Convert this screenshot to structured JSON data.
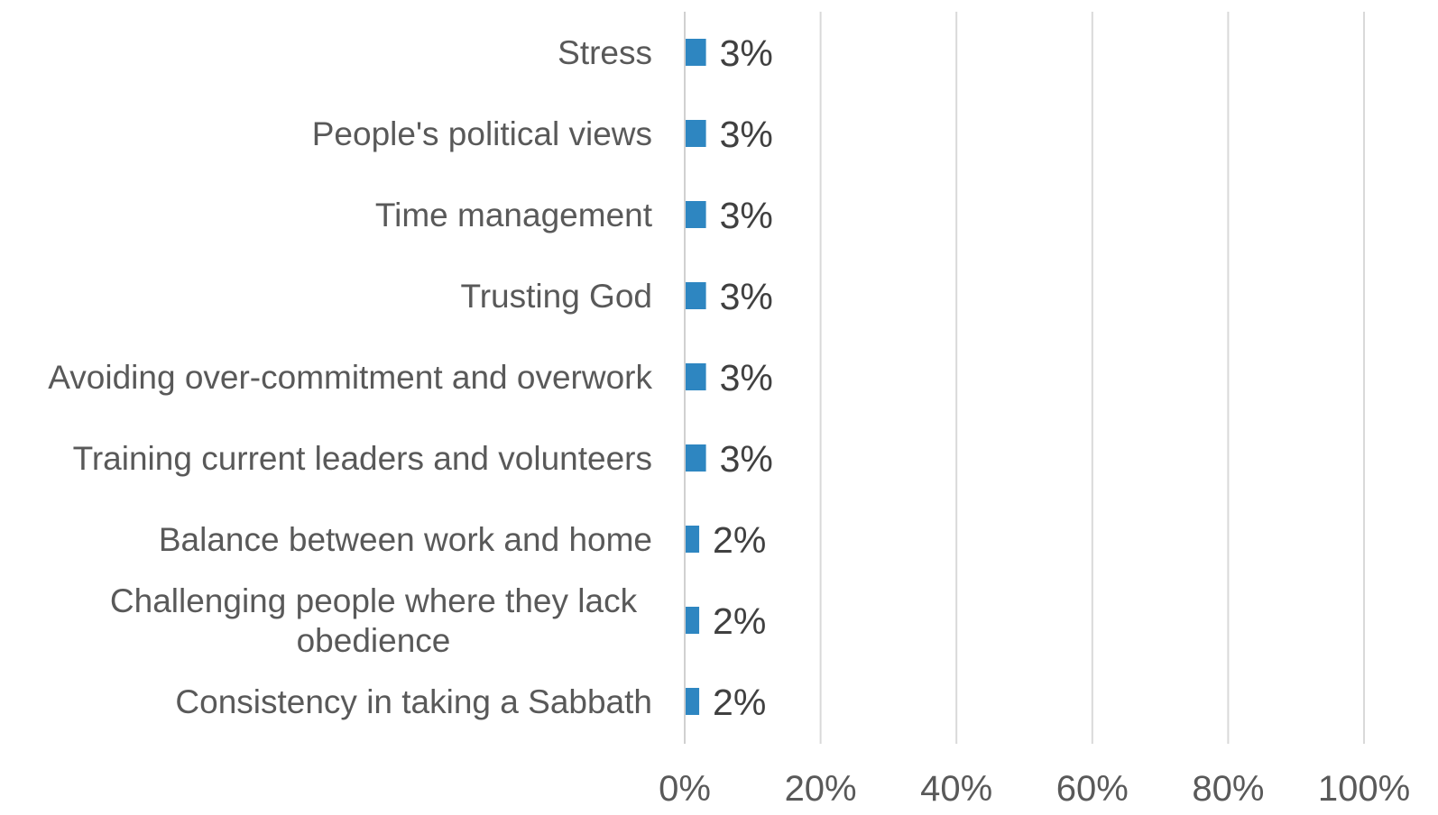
{
  "chart_data": {
    "type": "bar",
    "orientation": "horizontal",
    "categories": [
      "Stress",
      "People's political views",
      "Time management",
      "Trusting God",
      "Avoiding over-commitment and overwork",
      "Training current leaders and volunteers",
      "Balance between work and home",
      "Challenging people where they lack obedience",
      "Consistency in taking a Sabbath"
    ],
    "category_lines": [
      [
        "Stress"
      ],
      [
        "People's political views"
      ],
      [
        "Time management"
      ],
      [
        "Trusting God"
      ],
      [
        "Avoiding over-commitment and overwork"
      ],
      [
        "Training current leaders and volunteers"
      ],
      [
        "Balance between work and home"
      ],
      [
        "Challenging people where they lack",
        "obedience"
      ],
      [
        "Consistency in taking a Sabbath"
      ]
    ],
    "values": [
      3,
      3,
      3,
      3,
      3,
      3,
      2,
      2,
      2
    ],
    "data_labels": [
      "3%",
      "3%",
      "3%",
      "3%",
      "3%",
      "3%",
      "2%",
      "2%",
      "2%"
    ],
    "xlim": [
      0,
      100
    ],
    "xticks": [
      0,
      20,
      40,
      60,
      80,
      100
    ],
    "xtick_labels": [
      "0%",
      "20%",
      "40%",
      "60%",
      "80%",
      "100%"
    ],
    "grid": true,
    "bar_color": "#2E86C1",
    "title": "",
    "xlabel": "",
    "ylabel": ""
  }
}
